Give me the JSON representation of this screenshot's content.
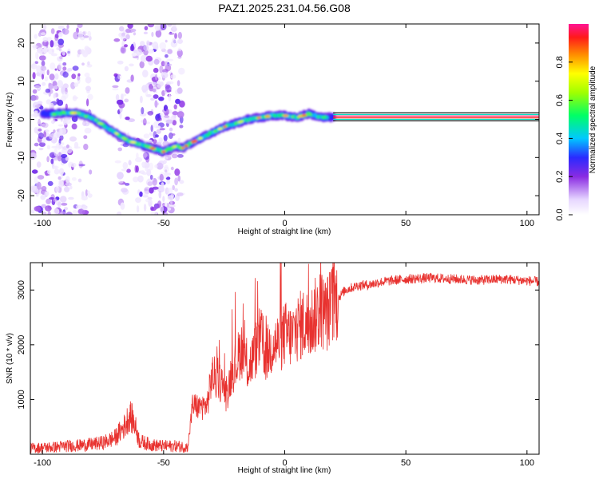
{
  "title": "PAZ1.2025.231.04.56.G08",
  "chart_data": [
    {
      "type": "heatmap",
      "xlabel": "Height of straight line (km)",
      "ylabel": "Frequency (Hz)",
      "xlim": [
        -105,
        105
      ],
      "ylim": [
        -25,
        25
      ],
      "xticks": [
        -100,
        -50,
        0,
        50,
        100
      ],
      "yticks": [
        -20,
        -10,
        0,
        10,
        20
      ],
      "colorbar": {
        "label": "Normalized spectral amplitude",
        "range": [
          0,
          1
        ],
        "ticks": [
          "0.0",
          "0.2",
          "0.4",
          "0.6",
          "0.8"
        ],
        "tick_values": [
          0.0,
          0.2,
          0.4,
          0.6,
          0.8
        ]
      },
      "ridge": {
        "x": [
          -100,
          -95,
          -90,
          -85,
          -80,
          -75,
          -70,
          -65,
          -60,
          -55,
          -50,
          -45,
          -42,
          -38,
          -35,
          -30,
          -25,
          -20,
          -15,
          -10,
          -5,
          0,
          5,
          10,
          15,
          20,
          50,
          105
        ],
        "frequency": [
          1.5,
          1.5,
          1.8,
          1.5,
          0.5,
          -1.5,
          -3.5,
          -5.5,
          -6.5,
          -7.5,
          -8.5,
          -7.0,
          -7.5,
          -6.0,
          -5.0,
          -3.5,
          -2.0,
          -1.0,
          0.0,
          0.5,
          1.0,
          1.0,
          0.5,
          1.5,
          0.5,
          0.5,
          0.5,
          0.5
        ]
      }
    },
    {
      "type": "line",
      "xlabel": "Height of straight line (km)",
      "ylabel": "SNR (10 * v/v)",
      "xlim": [
        -105,
        105
      ],
      "ylim": [
        0,
        3500
      ],
      "xticks": [
        -100,
        -50,
        0,
        50,
        100
      ],
      "yticks": [
        1000,
        2000,
        3000
      ],
      "series": [
        {
          "name": "SNR",
          "color": "#e8322f",
          "x": [
            -105,
            -100,
            -95,
            -90,
            -85,
            -80,
            -75,
            -70,
            -66,
            -64,
            -62,
            -60,
            -55,
            -50,
            -45,
            -40,
            -38,
            -35,
            -32,
            -30,
            -28,
            -26,
            -24,
            -22,
            -20,
            -18,
            -15,
            -12,
            -10,
            -8,
            -5,
            -2,
            0,
            3,
            5,
            8,
            10,
            12,
            15,
            17,
            20,
            25,
            30,
            35,
            40,
            50,
            60,
            70,
            80,
            90,
            100,
            105
          ],
          "y": [
            110,
            120,
            130,
            150,
            160,
            180,
            210,
            300,
            520,
            720,
            560,
            240,
            170,
            150,
            150,
            130,
            900,
            850,
            900,
            1450,
            1350,
            1300,
            1050,
            1500,
            1650,
            1950,
            1550,
            1900,
            2150,
            1800,
            2000,
            2050,
            2200,
            2150,
            2300,
            2400,
            2350,
            2500,
            2650,
            2550,
            2750,
            3000,
            3080,
            3100,
            3150,
            3200,
            3220,
            3200,
            3180,
            3200,
            3170,
            3150
          ]
        }
      ]
    }
  ]
}
